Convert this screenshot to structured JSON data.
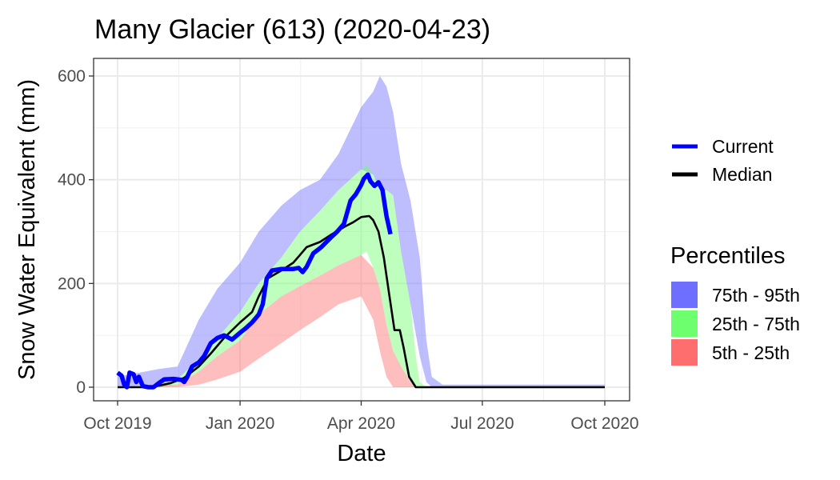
{
  "chart_data": {
    "type": "area",
    "title": "Many Glacier (613) (2020-04-23)",
    "xlabel": "Date",
    "ylabel": "Snow Water Equivalent (mm)",
    "xlim": [
      "2019-10-01",
      "2020-10-01"
    ],
    "ylim": [
      -17,
      635
    ],
    "x_ticks": [
      {
        "date": "2019-10-01",
        "label": "Oct 2019"
      },
      {
        "date": "2020-01-01",
        "label": "Jan 2020"
      },
      {
        "date": "2020-04-01",
        "label": "Apr 2020"
      },
      {
        "date": "2020-07-01",
        "label": "Jul 2020"
      },
      {
        "date": "2020-10-01",
        "label": "Oct 2020"
      }
    ],
    "y_ticks": [
      0,
      200,
      400,
      600
    ],
    "grid": true,
    "legend_position": "right",
    "lines": [
      {
        "name": "Current",
        "color": "#0000ff",
        "points": [
          [
            "2019-10-01",
            28
          ],
          [
            "2019-10-04",
            22
          ],
          [
            "2019-10-06",
            5
          ],
          [
            "2019-10-08",
            0
          ],
          [
            "2019-10-10",
            28
          ],
          [
            "2019-10-13",
            25
          ],
          [
            "2019-10-15",
            10
          ],
          [
            "2019-10-17",
            20
          ],
          [
            "2019-10-20",
            2
          ],
          [
            "2019-10-24",
            0
          ],
          [
            "2019-10-28",
            0
          ],
          [
            "2019-11-01",
            8
          ],
          [
            "2019-11-05",
            15
          ],
          [
            "2019-11-12",
            16
          ],
          [
            "2019-11-18",
            14
          ],
          [
            "2019-11-20",
            10
          ],
          [
            "2019-11-22",
            18
          ],
          [
            "2019-11-26",
            40
          ],
          [
            "2019-12-01",
            48
          ],
          [
            "2019-12-05",
            60
          ],
          [
            "2019-12-10",
            85
          ],
          [
            "2019-12-15",
            95
          ],
          [
            "2019-12-20",
            100
          ],
          [
            "2019-12-26",
            92
          ],
          [
            "2020-01-01",
            105
          ],
          [
            "2020-01-05",
            113
          ],
          [
            "2020-01-10",
            125
          ],
          [
            "2020-01-15",
            140
          ],
          [
            "2020-01-18",
            160
          ],
          [
            "2020-01-21",
            210
          ],
          [
            "2020-01-25",
            225
          ],
          [
            "2020-02-01",
            228
          ],
          [
            "2020-02-10",
            228
          ],
          [
            "2020-02-14",
            230
          ],
          [
            "2020-02-17",
            222
          ],
          [
            "2020-02-20",
            232
          ],
          [
            "2020-02-25",
            258
          ],
          [
            "2020-03-02",
            270
          ],
          [
            "2020-03-09",
            288
          ],
          [
            "2020-03-14",
            300
          ],
          [
            "2020-03-19",
            315
          ],
          [
            "2020-03-24",
            360
          ],
          [
            "2020-03-28",
            372
          ],
          [
            "2020-04-01",
            390
          ],
          [
            "2020-04-03",
            402
          ],
          [
            "2020-04-06",
            410
          ],
          [
            "2020-04-08",
            397
          ],
          [
            "2020-04-11",
            388
          ],
          [
            "2020-04-14",
            395
          ],
          [
            "2020-04-17",
            380
          ],
          [
            "2020-04-20",
            330
          ],
          [
            "2020-04-23",
            295
          ]
        ]
      },
      {
        "name": "Median",
        "color": "#000000",
        "points": [
          [
            "2019-10-01",
            0
          ],
          [
            "2019-10-20",
            0
          ],
          [
            "2019-11-01",
            3
          ],
          [
            "2019-11-10",
            8
          ],
          [
            "2019-11-20",
            18
          ],
          [
            "2019-12-01",
            40
          ],
          [
            "2019-12-10",
            65
          ],
          [
            "2019-12-20",
            95
          ],
          [
            "2020-01-01",
            125
          ],
          [
            "2020-01-10",
            145
          ],
          [
            "2020-01-15",
            175
          ],
          [
            "2020-01-22",
            210
          ],
          [
            "2020-02-01",
            225
          ],
          [
            "2020-02-10",
            240
          ],
          [
            "2020-02-15",
            255
          ],
          [
            "2020-02-20",
            270
          ],
          [
            "2020-03-01",
            280
          ],
          [
            "2020-03-10",
            295
          ],
          [
            "2020-03-20",
            310
          ],
          [
            "2020-03-26",
            318
          ],
          [
            "2020-04-01",
            328
          ],
          [
            "2020-04-07",
            330
          ],
          [
            "2020-04-10",
            322
          ],
          [
            "2020-04-14",
            300
          ],
          [
            "2020-04-18",
            250
          ],
          [
            "2020-04-22",
            180
          ],
          [
            "2020-04-26",
            110
          ],
          [
            "2020-04-30",
            110
          ],
          [
            "2020-05-03",
            75
          ],
          [
            "2020-05-07",
            20
          ],
          [
            "2020-05-12",
            0
          ],
          [
            "2020-10-01",
            0
          ]
        ]
      }
    ],
    "bands": [
      {
        "name": "75th - 95th",
        "color": "#6e6eff",
        "points": [
          [
            "2019-10-01",
            0,
            20
          ],
          [
            "2019-11-01",
            5,
            35
          ],
          [
            "2019-11-15",
            15,
            40
          ],
          [
            "2019-12-01",
            55,
            130
          ],
          [
            "2019-12-15",
            95,
            190
          ],
          [
            "2020-01-01",
            145,
            240
          ],
          [
            "2020-01-15",
            200,
            300
          ],
          [
            "2020-02-01",
            250,
            350
          ],
          [
            "2020-02-15",
            300,
            380
          ],
          [
            "2020-03-01",
            340,
            400
          ],
          [
            "2020-03-15",
            380,
            450
          ],
          [
            "2020-04-01",
            420,
            540
          ],
          [
            "2020-04-10",
            410,
            570
          ],
          [
            "2020-04-15",
            380,
            600
          ],
          [
            "2020-04-20",
            380,
            580
          ],
          [
            "2020-04-25",
            370,
            530
          ],
          [
            "2020-05-01",
            260,
            430
          ],
          [
            "2020-05-08",
            160,
            360
          ],
          [
            "2020-05-15",
            60,
            250
          ],
          [
            "2020-05-20",
            10,
            90
          ],
          [
            "2020-05-24",
            0,
            20
          ],
          [
            "2020-06-01",
            0,
            5
          ],
          [
            "2020-10-01",
            0,
            5
          ]
        ]
      },
      {
        "name": "25th - 75th",
        "color": "#6eff6e",
        "points": [
          [
            "2019-10-01",
            0,
            0
          ],
          [
            "2019-11-01",
            0,
            5
          ],
          [
            "2019-11-15",
            5,
            15
          ],
          [
            "2019-12-01",
            30,
            55
          ],
          [
            "2019-12-15",
            60,
            95
          ],
          [
            "2020-01-01",
            90,
            145
          ],
          [
            "2020-01-15",
            140,
            200
          ],
          [
            "2020-02-01",
            175,
            250
          ],
          [
            "2020-02-15",
            195,
            300
          ],
          [
            "2020-03-01",
            215,
            340
          ],
          [
            "2020-03-15",
            235,
            380
          ],
          [
            "2020-04-01",
            255,
            420
          ],
          [
            "2020-04-05",
            262,
            430
          ],
          [
            "2020-04-10",
            230,
            410
          ],
          [
            "2020-04-15",
            190,
            380
          ],
          [
            "2020-04-20",
            120,
            380
          ],
          [
            "2020-04-25",
            70,
            370
          ],
          [
            "2020-05-01",
            40,
            260
          ],
          [
            "2020-05-08",
            10,
            160
          ],
          [
            "2020-05-12",
            0,
            60
          ],
          [
            "2020-05-15",
            0,
            10
          ],
          [
            "2020-05-20",
            0,
            0
          ],
          [
            "2020-10-01",
            0,
            0
          ]
        ]
      },
      {
        "name": "5th - 25th",
        "color": "#ff6e6e",
        "points": [
          [
            "2019-10-01",
            0,
            0
          ],
          [
            "2019-11-15",
            0,
            5
          ],
          [
            "2019-12-01",
            5,
            30
          ],
          [
            "2019-12-15",
            15,
            60
          ],
          [
            "2020-01-01",
            30,
            90
          ],
          [
            "2020-01-15",
            55,
            140
          ],
          [
            "2020-02-01",
            85,
            175
          ],
          [
            "2020-02-15",
            110,
            195
          ],
          [
            "2020-03-01",
            135,
            215
          ],
          [
            "2020-03-15",
            160,
            235
          ],
          [
            "2020-04-01",
            175,
            255
          ],
          [
            "2020-04-10",
            130,
            230
          ],
          [
            "2020-04-15",
            70,
            190
          ],
          [
            "2020-04-20",
            20,
            120
          ],
          [
            "2020-04-25",
            0,
            70
          ],
          [
            "2020-05-01",
            0,
            40
          ],
          [
            "2020-05-08",
            0,
            10
          ],
          [
            "2020-05-12",
            0,
            0
          ],
          [
            "2020-10-01",
            0,
            0
          ]
        ]
      }
    ],
    "legend": {
      "lines": [
        {
          "label": "Current",
          "color": "#0000ff"
        },
        {
          "label": "Median",
          "color": "#000000"
        }
      ],
      "percentiles_title": "Percentiles",
      "percentiles": [
        {
          "label": "75th - 95th",
          "color": "#6e6eff"
        },
        {
          "label": "25th - 75th",
          "color": "#6eff6e"
        },
        {
          "label": "5th - 25th",
          "color": "#ff6e6e"
        }
      ]
    }
  }
}
